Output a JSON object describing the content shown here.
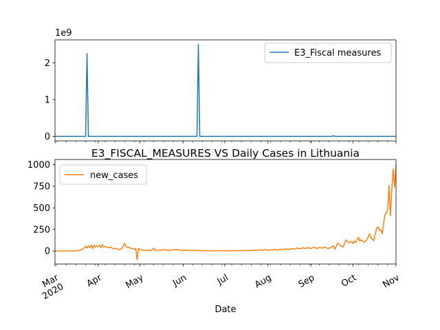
{
  "chart_data": [
    {
      "type": "line",
      "title": "",
      "xlabel": "",
      "ylabel": "",
      "y_multiplier_label": "1e9",
      "ylim": [
        -0.125,
        2.625
      ],
      "y_ticks": [
        0,
        1,
        2
      ],
      "y_tick_labels": [
        "0",
        "1",
        "2"
      ],
      "x_range": [
        "2020-03-01",
        "2020-11-01"
      ],
      "legend_position": "upper right",
      "grid": false,
      "series": [
        {
          "name": "E3_Fiscal measures",
          "color": "#1f77b4",
          "points": [
            [
              "2020-03-01",
              0
            ],
            [
              "2020-03-23",
              0
            ],
            [
              "2020-03-24",
              2.25
            ],
            [
              "2020-03-25",
              0
            ],
            [
              "2020-06-11",
              0
            ],
            [
              "2020-06-12",
              2.5
            ],
            [
              "2020-06-13",
              0
            ],
            [
              "2020-09-16",
              0
            ],
            [
              "2020-09-17",
              0.02
            ],
            [
              "2020-09-18",
              0
            ],
            [
              "2020-11-01",
              0
            ]
          ]
        }
      ]
    },
    {
      "type": "line",
      "title": "E3_FISCAL_MEASURES VS Daily Cases in Lithuania",
      "xlabel": "Date",
      "ylabel": "",
      "ylim": [
        -150,
        1060
      ],
      "y_ticks": [
        0,
        250,
        500,
        750,
        1000
      ],
      "y_tick_labels": [
        "0",
        "250",
        "500",
        "750",
        "1000"
      ],
      "x_range": [
        "2020-03-01",
        "2020-11-01"
      ],
      "x_ticks": [
        "2020-03-01",
        "2020-04-01",
        "2020-05-01",
        "2020-06-01",
        "2020-07-01",
        "2020-08-01",
        "2020-09-01",
        "2020-10-01",
        "2020-11-01"
      ],
      "x_tick_labels": [
        "Mar\n2020",
        "Apr",
        "May",
        "Jun",
        "Jul",
        "Aug",
        "Sep",
        "Oct",
        "Nov"
      ],
      "legend_position": "upper left",
      "grid": false,
      "series": [
        {
          "name": "new_cases",
          "color": "#ff7f0e",
          "points": [
            [
              "2020-03-01",
              0
            ],
            [
              "2020-03-10",
              0
            ],
            [
              "2020-03-15",
              2
            ],
            [
              "2020-03-17",
              5
            ],
            [
              "2020-03-19",
              10
            ],
            [
              "2020-03-21",
              20
            ],
            [
              "2020-03-23",
              55
            ],
            [
              "2020-03-24",
              35
            ],
            [
              "2020-03-25",
              60
            ],
            [
              "2020-03-26",
              40
            ],
            [
              "2020-03-27",
              65
            ],
            [
              "2020-03-28",
              30
            ],
            [
              "2020-03-29",
              70
            ],
            [
              "2020-03-30",
              45
            ],
            [
              "2020-03-31",
              60
            ],
            [
              "2020-04-01",
              50
            ],
            [
              "2020-04-02",
              65
            ],
            [
              "2020-04-03",
              40
            ],
            [
              "2020-04-04",
              75
            ],
            [
              "2020-04-05",
              45
            ],
            [
              "2020-04-06",
              55
            ],
            [
              "2020-04-08",
              40
            ],
            [
              "2020-04-10",
              45
            ],
            [
              "2020-04-12",
              25
            ],
            [
              "2020-04-14",
              30
            ],
            [
              "2020-04-16",
              15
            ],
            [
              "2020-04-18",
              30
            ],
            [
              "2020-04-20",
              90
            ],
            [
              "2020-04-21",
              50
            ],
            [
              "2020-04-23",
              40
            ],
            [
              "2020-04-25",
              30
            ],
            [
              "2020-04-27",
              20
            ],
            [
              "2020-04-28",
              30
            ],
            [
              "2020-04-29",
              -100
            ],
            [
              "2020-04-30",
              30
            ],
            [
              "2020-05-01",
              15
            ],
            [
              "2020-05-03",
              10
            ],
            [
              "2020-05-05",
              5
            ],
            [
              "2020-05-07",
              8
            ],
            [
              "2020-05-09",
              3
            ],
            [
              "2020-05-11",
              35
            ],
            [
              "2020-05-12",
              5
            ],
            [
              "2020-05-15",
              10
            ],
            [
              "2020-05-18",
              15
            ],
            [
              "2020-05-21",
              8
            ],
            [
              "2020-05-24",
              12
            ],
            [
              "2020-05-27",
              18
            ],
            [
              "2020-05-30",
              8
            ],
            [
              "2020-06-02",
              10
            ],
            [
              "2020-06-06",
              5
            ],
            [
              "2020-06-10",
              8
            ],
            [
              "2020-06-14",
              3
            ],
            [
              "2020-06-18",
              5
            ],
            [
              "2020-06-22",
              2
            ],
            [
              "2020-06-26",
              4
            ],
            [
              "2020-06-30",
              3
            ],
            [
              "2020-07-04",
              2
            ],
            [
              "2020-07-08",
              5
            ],
            [
              "2020-07-12",
              4
            ],
            [
              "2020-07-16",
              6
            ],
            [
              "2020-07-19",
              4
            ],
            [
              "2020-07-22",
              12
            ],
            [
              "2020-07-24",
              5
            ],
            [
              "2020-07-26",
              15
            ],
            [
              "2020-07-28",
              8
            ],
            [
              "2020-07-30",
              18
            ],
            [
              "2020-08-01",
              10
            ],
            [
              "2020-08-04",
              12
            ],
            [
              "2020-08-06",
              20
            ],
            [
              "2020-08-08",
              10
            ],
            [
              "2020-08-10",
              22
            ],
            [
              "2020-08-12",
              15
            ],
            [
              "2020-08-14",
              25
            ],
            [
              "2020-08-16",
              18
            ],
            [
              "2020-08-18",
              30
            ],
            [
              "2020-08-20",
              22
            ],
            [
              "2020-08-22",
              35
            ],
            [
              "2020-08-24",
              25
            ],
            [
              "2020-08-26",
              38
            ],
            [
              "2020-08-28",
              30
            ],
            [
              "2020-08-30",
              40
            ],
            [
              "2020-09-01",
              28
            ],
            [
              "2020-09-03",
              45
            ],
            [
              "2020-09-05",
              30
            ],
            [
              "2020-09-07",
              40
            ],
            [
              "2020-09-09",
              35
            ],
            [
              "2020-09-11",
              45
            ],
            [
              "2020-09-13",
              28
            ],
            [
              "2020-09-15",
              40
            ],
            [
              "2020-09-17",
              60
            ],
            [
              "2020-09-18",
              20
            ],
            [
              "2020-09-20",
              90
            ],
            [
              "2020-09-22",
              65
            ],
            [
              "2020-09-24",
              45
            ],
            [
              "2020-09-26",
              130
            ],
            [
              "2020-09-28",
              95
            ],
            [
              "2020-09-30",
              110
            ],
            [
              "2020-10-01",
              85
            ],
            [
              "2020-10-02",
              115
            ],
            [
              "2020-10-03",
              100
            ],
            [
              "2020-10-05",
              160
            ],
            [
              "2020-10-06",
              115
            ],
            [
              "2020-10-07",
              130
            ],
            [
              "2020-10-09",
              100
            ],
            [
              "2020-10-11",
              130
            ],
            [
              "2020-10-13",
              200
            ],
            [
              "2020-10-14",
              150
            ],
            [
              "2020-10-15",
              140
            ],
            [
              "2020-10-16",
              120
            ],
            [
              "2020-10-18",
              260
            ],
            [
              "2020-10-19",
              280
            ],
            [
              "2020-10-20",
              240
            ],
            [
              "2020-10-21",
              250
            ],
            [
              "2020-10-22",
              200
            ],
            [
              "2020-10-23",
              300
            ],
            [
              "2020-10-24",
              420
            ],
            [
              "2020-10-25",
              440
            ],
            [
              "2020-10-26",
              480
            ],
            [
              "2020-10-27",
              760
            ],
            [
              "2020-10-28",
              410
            ],
            [
              "2020-10-29",
              720
            ],
            [
              "2020-10-30",
              950
            ],
            [
              "2020-10-31",
              740
            ],
            [
              "2020-11-01",
              1000
            ],
            [
              "2020-11-02",
              900
            ]
          ]
        }
      ]
    }
  ]
}
